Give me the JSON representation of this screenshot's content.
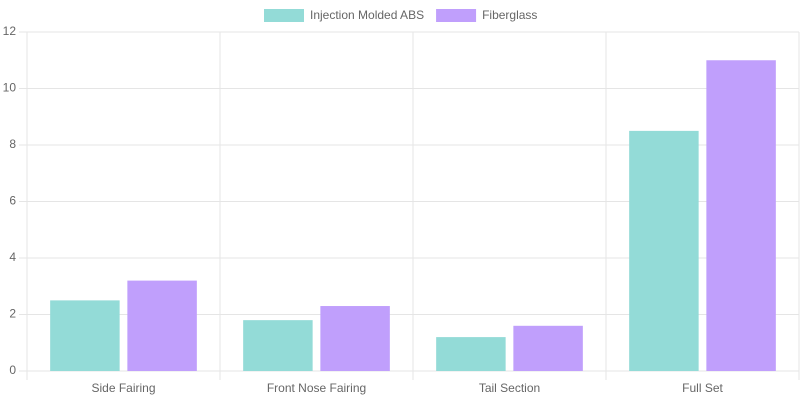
{
  "chart_data": {
    "type": "bar",
    "categories": [
      "Side Fairing",
      "Front Nose Fairing",
      "Tail Section",
      "Full Set"
    ],
    "series": [
      {
        "name": "Injection Molded ABS",
        "color": "#93dbd7",
        "values": [
          2.5,
          1.8,
          1.2,
          8.5
        ]
      },
      {
        "name": "Fiberglass",
        "color": "#c09ffc",
        "values": [
          3.2,
          2.3,
          1.6,
          11
        ]
      }
    ],
    "ylim": [
      0,
      12
    ],
    "yticks": [
      0,
      2,
      4,
      6,
      8,
      10,
      12
    ],
    "grid": true,
    "legend": "top"
  }
}
